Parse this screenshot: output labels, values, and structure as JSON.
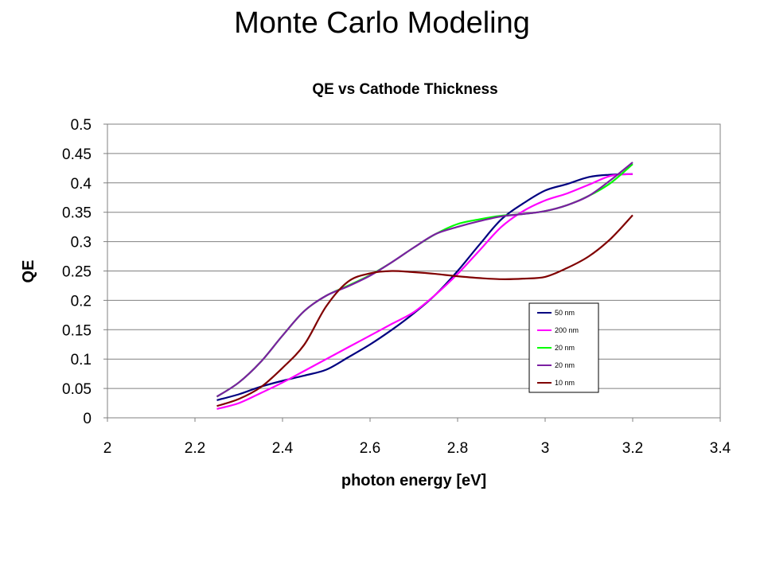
{
  "slide": {
    "title": "Monte Carlo Modeling"
  },
  "chart_data": {
    "type": "line",
    "title": "QE vs Cathode Thickness",
    "xlabel": "photon energy [eV]",
    "ylabel": "QE",
    "xlim": [
      2,
      3.4
    ],
    "ylim": [
      0,
      0.5
    ],
    "x_ticks": [
      "2",
      "2.2",
      "2.4",
      "2.6",
      "2.8",
      "3",
      "3.2",
      "3.4"
    ],
    "y_ticks": [
      "0",
      "0.05",
      "0.1",
      "0.15",
      "0.2",
      "0.25",
      "0.3",
      "0.35",
      "0.4",
      "0.45",
      "0.5"
    ],
    "grid": "horizontal",
    "legend_position": "lower-right",
    "series": [
      {
        "name": "50 nm",
        "color": "#000080",
        "x": [
          2.25,
          2.3,
          2.35,
          2.4,
          2.45,
          2.5,
          2.55,
          2.6,
          2.65,
          2.7,
          2.75,
          2.8,
          2.85,
          2.9,
          2.95,
          3.0,
          3.05,
          3.1,
          3.15,
          3.2
        ],
        "y": [
          0.03,
          0.04,
          0.053,
          0.063,
          0.072,
          0.082,
          0.103,
          0.125,
          0.15,
          0.178,
          0.21,
          0.25,
          0.295,
          0.338,
          0.365,
          0.387,
          0.398,
          0.41,
          0.414,
          0.415
        ]
      },
      {
        "name": "200 nm",
        "color": "#ff00ff",
        "x": [
          2.25,
          2.3,
          2.35,
          2.4,
          2.45,
          2.5,
          2.55,
          2.6,
          2.65,
          2.7,
          2.75,
          2.8,
          2.85,
          2.9,
          2.95,
          3.0,
          3.05,
          3.1,
          3.15,
          3.2
        ],
        "y": [
          0.015,
          0.025,
          0.042,
          0.06,
          0.08,
          0.1,
          0.12,
          0.14,
          0.16,
          0.18,
          0.21,
          0.245,
          0.285,
          0.325,
          0.352,
          0.37,
          0.382,
          0.397,
          0.412,
          0.415
        ]
      },
      {
        "name": "20 nm",
        "color": "#00ff00",
        "x": [
          2.25,
          2.3,
          2.35,
          2.4,
          2.45,
          2.5,
          2.55,
          2.6,
          2.65,
          2.7,
          2.75,
          2.8,
          2.85,
          2.9,
          2.95,
          3.0,
          3.05,
          3.1,
          3.15,
          3.2
        ],
        "y": [
          0.036,
          0.06,
          0.095,
          0.14,
          0.182,
          0.208,
          0.225,
          0.243,
          0.265,
          0.29,
          0.313,
          0.33,
          0.338,
          0.344,
          0.347,
          0.352,
          0.362,
          0.378,
          0.4,
          0.432
        ]
      },
      {
        "name": "20 nm",
        "color": "#7b1fa2",
        "x": [
          2.25,
          2.3,
          2.35,
          2.4,
          2.45,
          2.5,
          2.55,
          2.6,
          2.65,
          2.7,
          2.75,
          2.8,
          2.85,
          2.9,
          2.95,
          3.0,
          3.05,
          3.1,
          3.15,
          3.2
        ],
        "y": [
          0.036,
          0.06,
          0.095,
          0.14,
          0.182,
          0.208,
          0.224,
          0.242,
          0.265,
          0.29,
          0.313,
          0.325,
          0.335,
          0.343,
          0.347,
          0.352,
          0.362,
          0.378,
          0.405,
          0.435
        ]
      },
      {
        "name": "10 nm",
        "color": "#800000",
        "x": [
          2.25,
          2.3,
          2.35,
          2.4,
          2.45,
          2.5,
          2.55,
          2.6,
          2.65,
          2.7,
          2.75,
          2.8,
          2.85,
          2.9,
          2.95,
          3.0,
          3.05,
          3.1,
          3.15,
          3.2
        ],
        "y": [
          0.02,
          0.032,
          0.052,
          0.085,
          0.125,
          0.19,
          0.232,
          0.246,
          0.25,
          0.248,
          0.245,
          0.241,
          0.238,
          0.236,
          0.237,
          0.24,
          0.255,
          0.275,
          0.305,
          0.345
        ]
      }
    ]
  }
}
